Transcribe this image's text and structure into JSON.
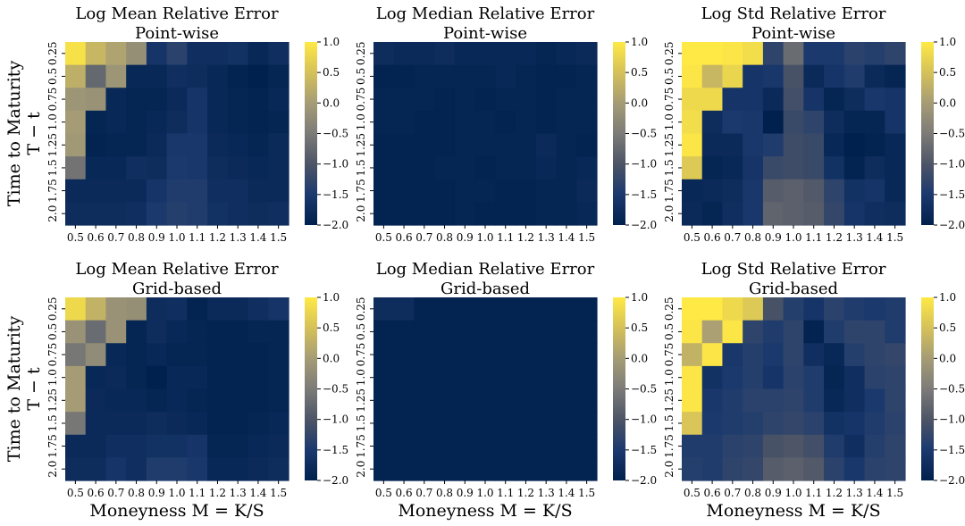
{
  "figure": {
    "ylabel_lines": [
      "Time to Maturity",
      "T − t"
    ],
    "xlabel": "Moneyness M = K/S"
  },
  "chart_data": [
    {
      "type": "heatmap",
      "title": [
        "Log Mean Relative Error",
        "Point-wise"
      ],
      "x": [
        "0.5",
        "0.6",
        "0.7",
        "0.8",
        "0.9",
        "1.0",
        "1.1",
        "1.2",
        "1.3",
        "1.4",
        "1.5"
      ],
      "y": [
        "0.25",
        "0.5",
        "0.75",
        "1.0",
        "1.25",
        "1.5",
        "1.75",
        "2.0"
      ],
      "colorbar": {
        "min": -2.0,
        "max": 1.0,
        "ticks": [
          "1.0",
          "0.5",
          "0.0",
          "−0.5",
          "−1.0",
          "−1.5",
          "−2.0"
        ]
      },
      "values": [
        [
          0.9,
          0.35,
          0.1,
          -0.2,
          -1.6,
          -1.35,
          -1.7,
          -1.7,
          -1.65,
          -1.85,
          -1.7
        ],
        [
          0.25,
          -0.75,
          -0.1,
          -1.85,
          -1.85,
          -1.7,
          -1.75,
          -1.85,
          -1.95,
          -2.0,
          -1.9
        ],
        [
          -0.1,
          -0.15,
          -1.85,
          -1.9,
          -1.9,
          -1.8,
          -1.6,
          -1.85,
          -1.9,
          -1.95,
          -1.85
        ],
        [
          0.0,
          -1.9,
          -1.85,
          -1.9,
          -1.85,
          -1.75,
          -1.6,
          -1.85,
          -1.9,
          -1.95,
          -1.9
        ],
        [
          -0.05,
          -1.95,
          -1.9,
          -1.9,
          -1.8,
          -1.55,
          -1.55,
          -1.8,
          -1.85,
          -1.9,
          -1.8
        ],
        [
          -0.6,
          -1.85,
          -1.85,
          -1.7,
          -1.75,
          -1.5,
          -1.55,
          -1.75,
          -1.8,
          -1.85,
          -1.8
        ],
        [
          -1.8,
          -1.8,
          -1.8,
          -1.8,
          -1.6,
          -1.45,
          -1.45,
          -1.7,
          -1.7,
          -1.8,
          -1.8
        ],
        [
          -1.75,
          -1.75,
          -1.75,
          -1.7,
          -1.5,
          -1.4,
          -1.45,
          -1.65,
          -1.7,
          -1.75,
          -1.7
        ]
      ]
    },
    {
      "type": "heatmap",
      "title": [
        "Log Median Relative Error",
        "Point-wise"
      ],
      "x": [
        "0.5",
        "0.6",
        "0.7",
        "0.8",
        "0.9",
        "1.0",
        "1.1",
        "1.2",
        "1.3",
        "1.4",
        "1.5"
      ],
      "y": [
        "0.25",
        "0.5",
        "0.75",
        "1.0",
        "1.25",
        "1.5",
        "1.75",
        "2.0"
      ],
      "colorbar": {
        "min": -2.0,
        "max": 1.0,
        "ticks": [
          "1.0",
          "0.5",
          "0.0",
          "−0.5",
          "−1.0",
          "−1.5",
          "−2.0"
        ]
      },
      "values": [
        [
          -1.75,
          -1.8,
          -1.8,
          -1.75,
          -1.85,
          -1.85,
          -1.85,
          -1.85,
          -1.9,
          -1.85,
          -1.8
        ],
        [
          -1.95,
          -1.95,
          -1.9,
          -1.9,
          -1.9,
          -1.9,
          -1.85,
          -1.9,
          -1.95,
          -1.95,
          -1.9
        ],
        [
          -1.9,
          -1.9,
          -1.9,
          -1.95,
          -1.9,
          -1.95,
          -1.9,
          -1.9,
          -1.95,
          -1.9,
          -1.9
        ],
        [
          -1.9,
          -1.9,
          -1.95,
          -1.95,
          -1.9,
          -1.9,
          -1.95,
          -1.9,
          -1.95,
          -1.9,
          -1.9
        ],
        [
          -1.95,
          -1.95,
          -1.95,
          -1.95,
          -1.9,
          -1.9,
          -1.9,
          -1.9,
          -1.8,
          -1.9,
          -1.95
        ],
        [
          -1.95,
          -1.95,
          -1.95,
          -1.9,
          -1.9,
          -1.95,
          -1.9,
          -1.9,
          -1.85,
          -1.9,
          -1.85
        ],
        [
          -1.95,
          -1.95,
          -1.95,
          -1.95,
          -1.9,
          -1.9,
          -1.95,
          -1.95,
          -1.9,
          -1.9,
          -1.8
        ],
        [
          -1.95,
          -1.95,
          -1.95,
          -1.95,
          -1.9,
          -1.95,
          -1.95,
          -1.95,
          -1.9,
          -1.9,
          -1.85
        ]
      ]
    },
    {
      "type": "heatmap",
      "title": [
        "Log Std Relative Error",
        "Point-wise"
      ],
      "x": [
        "0.5",
        "0.6",
        "0.7",
        "0.8",
        "0.9",
        "1.0",
        "1.1",
        "1.2",
        "1.3",
        "1.4",
        "1.5"
      ],
      "y": [
        "0.25",
        "0.5",
        "0.75",
        "1.0",
        "1.25",
        "1.5",
        "1.75",
        "2.0"
      ],
      "colorbar": {
        "min": -2.0,
        "max": 1.0,
        "ticks": [
          "1.0",
          "0.5",
          "0.0",
          "−0.5",
          "−1.0",
          "−1.5",
          "−2.0"
        ]
      },
      "values": [
        [
          1.0,
          1.0,
          0.95,
          0.85,
          -1.3,
          -0.7,
          -1.5,
          -1.5,
          -1.35,
          -1.4,
          -1.3
        ],
        [
          0.95,
          0.35,
          0.75,
          -1.6,
          -1.55,
          -1.05,
          -1.8,
          -1.6,
          -1.45,
          -1.8,
          -1.9
        ],
        [
          0.8,
          0.8,
          -1.6,
          -1.6,
          -1.8,
          -1.1,
          -1.6,
          -1.9,
          -1.75,
          -1.55,
          -1.6
        ],
        [
          0.85,
          -1.75,
          -1.5,
          -1.55,
          -2.0,
          -1.2,
          -1.3,
          -1.75,
          -1.9,
          -1.9,
          -1.6
        ],
        [
          0.95,
          -1.8,
          -1.8,
          -1.55,
          -1.45,
          -1.15,
          -1.2,
          -1.85,
          -2.0,
          -1.95,
          -1.85
        ],
        [
          0.6,
          -1.9,
          -1.85,
          -1.6,
          -1.2,
          -1.15,
          -1.2,
          -1.65,
          -1.95,
          -1.75,
          -1.85
        ],
        [
          -1.85,
          -1.8,
          -1.75,
          -1.55,
          -0.9,
          -0.85,
          -0.95,
          -1.3,
          -1.65,
          -1.6,
          -1.85
        ],
        [
          -1.8,
          -1.9,
          -1.7,
          -1.55,
          -0.8,
          -0.85,
          -0.9,
          -1.25,
          -1.6,
          -1.7,
          -1.75
        ]
      ]
    },
    {
      "type": "heatmap",
      "title": [
        "Log Mean Relative Error",
        "Grid-based"
      ],
      "x": [
        "0.5",
        "0.6",
        "0.7",
        "0.8",
        "0.9",
        "1.0",
        "1.1",
        "1.2",
        "1.3",
        "1.4",
        "1.5"
      ],
      "y": [
        "0.25",
        "0.5",
        "0.75",
        "1.0",
        "1.25",
        "1.5",
        "1.75",
        "2.0"
      ],
      "colorbar": {
        "min": -2.0,
        "max": 1.0,
        "ticks": [
          "1.0",
          "0.5",
          "0.0",
          "−0.5",
          "−1.0",
          "−1.5",
          "−2.0"
        ]
      },
      "values": [
        [
          0.8,
          0.3,
          -0.15,
          -0.2,
          -1.75,
          -1.7,
          -1.95,
          -1.8,
          -1.8,
          -1.7,
          -1.6
        ],
        [
          -0.15,
          -0.7,
          -0.15,
          -1.9,
          -1.75,
          -1.85,
          -1.9,
          -1.95,
          -1.95,
          -1.9,
          -1.9
        ],
        [
          -0.55,
          -0.25,
          -1.85,
          -1.9,
          -1.85,
          -1.9,
          -1.9,
          -1.95,
          -1.95,
          -1.95,
          -1.9
        ],
        [
          0.0,
          -1.85,
          -1.8,
          -1.9,
          -2.0,
          -1.85,
          -1.85,
          -1.95,
          -1.95,
          -1.95,
          -1.9
        ],
        [
          0.0,
          -1.8,
          -1.85,
          -1.85,
          -1.9,
          -1.85,
          -1.9,
          -1.95,
          -1.95,
          -1.95,
          -1.9
        ],
        [
          -0.55,
          -1.8,
          -1.8,
          -1.8,
          -1.75,
          -1.8,
          -1.85,
          -1.95,
          -1.95,
          -1.9,
          -1.85
        ],
        [
          -1.8,
          -1.8,
          -1.7,
          -1.7,
          -1.65,
          -1.65,
          -1.6,
          -1.9,
          -1.9,
          -1.85,
          -1.8
        ],
        [
          -1.75,
          -1.75,
          -1.6,
          -1.7,
          -1.45,
          -1.45,
          -1.55,
          -1.85,
          -1.85,
          -1.8,
          -1.75
        ]
      ]
    },
    {
      "type": "heatmap",
      "title": [
        "Log Median Relative Error",
        "Grid-based"
      ],
      "x": [
        "0.5",
        "0.6",
        "0.7",
        "0.8",
        "0.9",
        "1.0",
        "1.1",
        "1.2",
        "1.3",
        "1.4",
        "1.5"
      ],
      "y": [
        "0.25",
        "0.5",
        "0.75",
        "1.0",
        "1.25",
        "1.5",
        "1.75",
        "2.0"
      ],
      "colorbar": {
        "min": -2.0,
        "max": 1.0,
        "ticks": [
          "1.0",
          "0.5",
          "0.0",
          "−0.5",
          "−1.0",
          "−1.5",
          "−2.0"
        ]
      },
      "values": [
        [
          -1.75,
          -1.75,
          -1.95,
          -1.95,
          -1.95,
          -1.95,
          -1.95,
          -1.95,
          -1.95,
          -1.95,
          -1.95
        ],
        [
          -1.95,
          -1.95,
          -1.95,
          -1.95,
          -1.95,
          -1.95,
          -1.95,
          -1.95,
          -1.95,
          -1.95,
          -1.95
        ],
        [
          -1.95,
          -1.95,
          -1.95,
          -1.95,
          -1.95,
          -1.95,
          -1.95,
          -1.95,
          -1.95,
          -1.95,
          -1.95
        ],
        [
          -1.95,
          -1.95,
          -1.95,
          -1.95,
          -1.95,
          -1.95,
          -1.95,
          -1.95,
          -1.95,
          -1.95,
          -1.95
        ],
        [
          -1.95,
          -1.95,
          -1.95,
          -1.95,
          -1.95,
          -1.95,
          -1.95,
          -1.95,
          -1.95,
          -1.95,
          -1.95
        ],
        [
          -1.95,
          -1.95,
          -1.95,
          -1.95,
          -1.95,
          -1.95,
          -1.95,
          -1.95,
          -1.95,
          -1.95,
          -1.95
        ],
        [
          -1.95,
          -1.95,
          -1.95,
          -1.95,
          -1.95,
          -1.95,
          -1.95,
          -1.95,
          -1.95,
          -1.95,
          -1.95
        ],
        [
          -1.95,
          -1.95,
          -1.95,
          -1.95,
          -1.95,
          -1.95,
          -1.95,
          -1.95,
          -1.95,
          -1.95,
          -1.95
        ]
      ]
    },
    {
      "type": "heatmap",
      "title": [
        "Log Std Relative Error",
        "Grid-based"
      ],
      "x": [
        "0.5",
        "0.6",
        "0.7",
        "0.8",
        "0.9",
        "1.0",
        "1.1",
        "1.2",
        "1.3",
        "1.4",
        "1.5"
      ],
      "y": [
        "0.25",
        "0.5",
        "0.75",
        "1.0",
        "1.25",
        "1.5",
        "1.75",
        "2.0"
      ],
      "colorbar": {
        "min": -2.0,
        "max": 1.0,
        "ticks": [
          "1.0",
          "0.5",
          "0.0",
          "−0.5",
          "−1.0",
          "−1.5",
          "−2.0"
        ]
      },
      "values": [
        [
          1.0,
          1.0,
          0.8,
          0.6,
          -1.05,
          -1.4,
          -1.6,
          -1.35,
          -1.45,
          -1.5,
          -1.45
        ],
        [
          0.95,
          0.05,
          0.95,
          -1.3,
          -1.45,
          -1.3,
          -1.95,
          -1.45,
          -1.3,
          -1.3,
          -1.45
        ],
        [
          0.3,
          0.95,
          -1.55,
          -1.4,
          -1.5,
          -1.3,
          -1.7,
          -1.85,
          -1.4,
          -1.3,
          -1.25
        ],
        [
          0.95,
          -1.65,
          -1.5,
          -1.4,
          -1.6,
          -1.35,
          -1.45,
          -1.9,
          -1.7,
          -1.35,
          -1.3
        ],
        [
          0.95,
          -1.55,
          -1.45,
          -1.35,
          -1.35,
          -1.3,
          -1.45,
          -1.85,
          -1.7,
          -1.5,
          -1.3
        ],
        [
          0.55,
          -1.5,
          -1.45,
          -1.4,
          -1.3,
          -1.25,
          -1.35,
          -1.65,
          -1.6,
          -1.45,
          -1.35
        ],
        [
          -1.45,
          -1.45,
          -1.35,
          -1.3,
          -1.05,
          -1.0,
          -1.1,
          -1.45,
          -1.7,
          -1.4,
          -1.3
        ],
        [
          -1.4,
          -1.45,
          -1.3,
          -1.25,
          -0.9,
          -0.85,
          -0.95,
          -1.35,
          -1.55,
          -1.35,
          -1.3
        ]
      ]
    }
  ]
}
